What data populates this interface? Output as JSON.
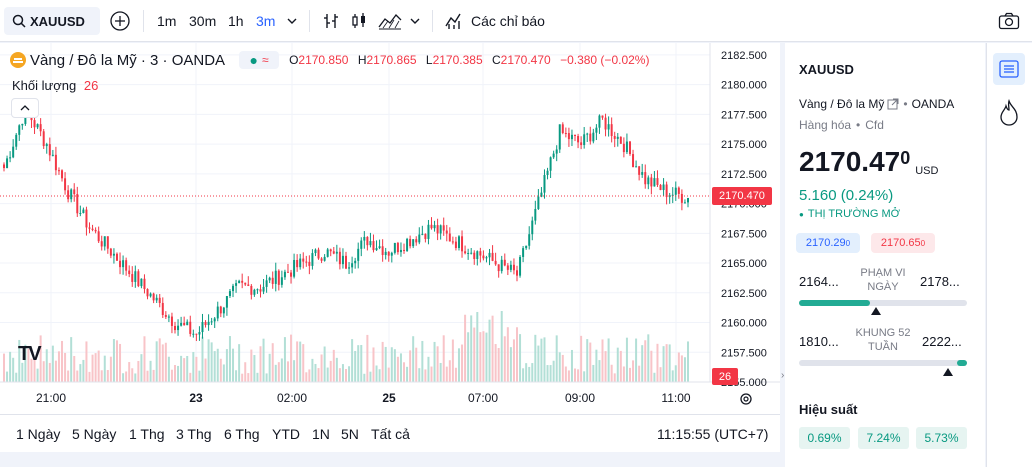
{
  "toolbar": {
    "symbol": "XAUUSD",
    "timeframes": [
      "1m",
      "30m",
      "1h",
      "3m"
    ],
    "indicators_label": "Các chỉ báo"
  },
  "legend": {
    "name": "Vàng / Đô la Mỹ · 3 · OANDA",
    "o_key": "O",
    "o": "2170.850",
    "h_key": "H",
    "h": "2170.865",
    "l_key": "L",
    "l": "2170.385",
    "c_key": "C",
    "c": "2170.470",
    "change": "−0.380 (−0.02%)",
    "volume_label": "Khối lượng",
    "volume_value": "26"
  },
  "chart_data": {
    "type": "candlestick",
    "y_ticks": [
      "2182.500",
      "2180.000",
      "2177.500",
      "2175.000",
      "2172.500",
      "2170.000",
      "2167.500",
      "2165.000",
      "2162.500",
      "2160.000",
      "2157.500",
      "2155.000"
    ],
    "ylim": [
      2155.0,
      2183.5
    ],
    "x_ticks": [
      "21:00",
      "23",
      "02:00",
      "25",
      "07:00",
      "09:00",
      "11:00"
    ],
    "last_price": "2170.470",
    "last_volume": "26",
    "approx_close_path": [
      2173,
      2178,
      2175,
      2171,
      2168,
      2166,
      2164,
      2162,
      2160,
      2159,
      2161,
      2163,
      2163,
      2164,
      2165,
      2166,
      2165,
      2167,
      2166,
      2167,
      2168,
      2167,
      2166,
      2165,
      2164,
      2170,
      2176,
      2175,
      2177,
      2175,
      2172,
      2171,
      2170.5
    ]
  },
  "bottom": {
    "ranges": [
      "1 Ngày",
      "5 Ngày",
      "1 Thg",
      "3 Thg",
      "6 Thg",
      "YTD",
      "1N",
      "5N",
      "Tất cả"
    ],
    "clock": "11:15:55 (UTC+7)"
  },
  "panel": {
    "symbol": "XAUUSD",
    "desc": "Vàng / Đô la Mỹ",
    "exchange": "OANDA",
    "category": "Hàng hóa",
    "type": "Cfd",
    "price_main": "2170.47",
    "price_frac": "0",
    "currency": "USD",
    "change": "5.160 (0.24%)",
    "market_status": "THỊ TRƯỜNG MỞ",
    "bid": "2170.29",
    "bid_frac": "0",
    "ask": "2170.65",
    "ask_frac": "0",
    "day_low": "2164...",
    "day_label_1": "PHẠM VI",
    "day_label_2": "NGÀY",
    "day_high": "2178...",
    "day_fill": 0.42,
    "wk_low": "1810...",
    "wk_label_1": "KHUNG 52",
    "wk_label_2": "TUẦN",
    "wk_high": "2222...",
    "wk_fill": 0.95,
    "perf_title": "Hiệu suất",
    "perf": [
      "0.69%",
      "7.24%",
      "5.73%"
    ]
  },
  "colors": {
    "up": "#089981",
    "down": "#f23645",
    "accent": "#2962ff"
  }
}
